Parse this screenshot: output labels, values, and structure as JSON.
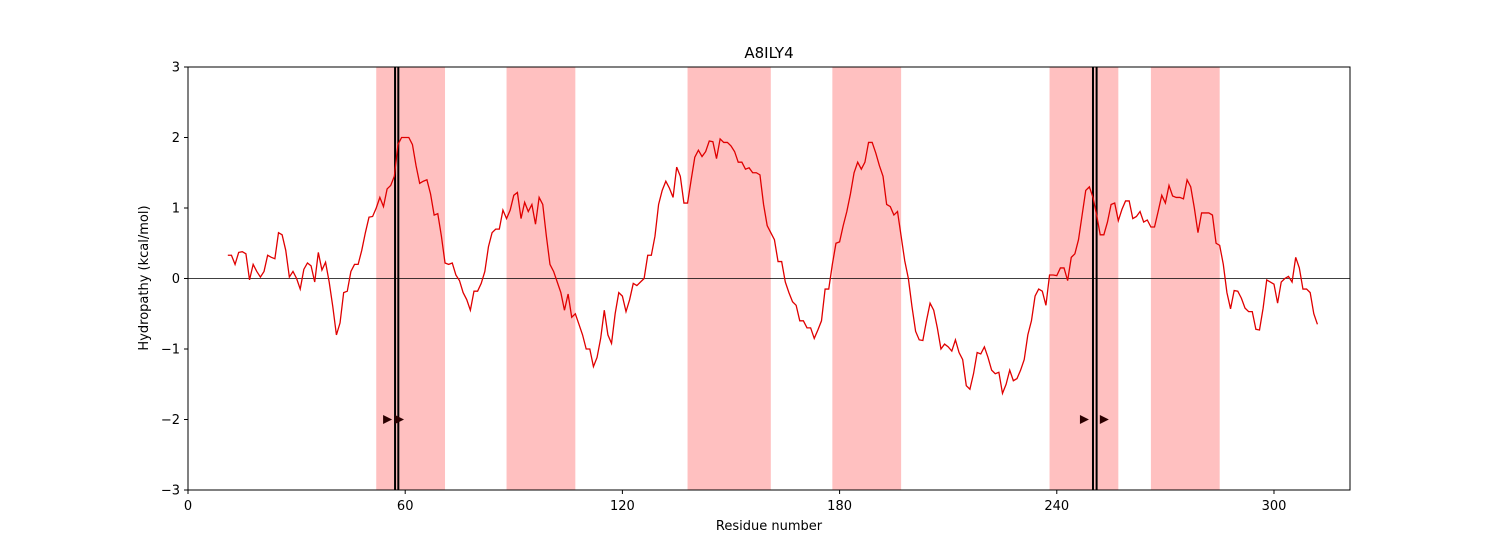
{
  "chart_data": {
    "type": "line",
    "title": "A8ILY4",
    "xlabel": "Residue number",
    "ylabel": "Hydropathy (kcal/mol)",
    "xlim": [
      0,
      321
    ],
    "ylim": [
      -3,
      3
    ],
    "xticks": [
      0,
      60,
      120,
      180,
      240,
      300
    ],
    "yticks": [
      {
        "value": -3,
        "label": "−3"
      },
      {
        "value": -2,
        "label": "−2"
      },
      {
        "value": -1,
        "label": "−1"
      },
      0,
      1,
      2,
      3
    ],
    "color": "#e00000",
    "region_color": "#ffc0c0",
    "marker_color": "#2b0000",
    "regions": [
      [
        52,
        71
      ],
      [
        88,
        107
      ],
      [
        138,
        161
      ],
      [
        178,
        197
      ],
      [
        238,
        257
      ],
      [
        266,
        285
      ]
    ],
    "vlines": [
      57.2,
      58.1,
      250,
      251
    ],
    "triangles": {
      "x": [
        55,
        58.3,
        247.5,
        253
      ],
      "y": -2
    },
    "x": [
      11,
      12,
      13,
      14,
      15,
      16,
      17,
      18,
      19,
      20,
      21,
      22,
      23,
      24,
      25,
      26,
      27,
      28,
      29,
      30,
      31,
      32,
      33,
      34,
      35,
      36,
      37,
      38,
      39,
      40,
      41,
      42,
      43,
      44,
      45,
      46,
      47,
      48,
      49,
      50,
      51,
      52,
      53,
      54,
      55,
      56,
      57,
      58,
      59,
      60,
      61,
      62,
      63,
      64,
      65,
      66,
      67,
      68,
      69,
      70,
      71,
      72,
      73,
      74,
      75,
      76,
      77,
      78,
      79,
      80,
      81,
      82,
      83,
      84,
      85,
      86,
      87,
      88,
      89,
      90,
      91,
      92,
      93,
      94,
      95,
      96,
      97,
      98,
      99,
      100,
      101,
      102,
      103,
      104,
      105,
      106,
      107,
      108,
      109,
      110,
      111,
      112,
      113,
      114,
      115,
      116,
      117,
      118,
      119,
      120,
      121,
      122,
      123,
      124,
      125,
      126,
      127,
      128,
      129,
      130,
      131,
      132,
      133,
      134,
      135,
      136,
      137,
      138,
      139,
      140,
      141,
      142,
      143,
      144,
      145,
      146,
      147,
      148,
      149,
      150,
      151,
      152,
      153,
      154,
      155,
      156,
      157,
      158,
      159,
      160,
      161,
      162,
      163,
      164,
      165,
      166,
      167,
      168,
      169,
      170,
      171,
      172,
      173,
      174,
      175,
      176,
      177,
      178,
      179,
      180,
      181,
      182,
      183,
      184,
      185,
      186,
      187,
      188,
      189,
      190,
      191,
      192,
      193,
      194,
      195,
      196,
      197,
      198,
      199,
      200,
      201,
      202,
      203,
      204,
      205,
      206,
      207,
      208,
      209,
      210,
      211,
      212,
      213,
      214,
      215,
      216,
      217,
      218,
      219,
      220,
      221,
      222,
      223,
      224,
      225,
      226,
      227,
      228,
      229,
      230,
      231,
      232,
      233,
      234,
      235,
      236,
      237,
      238,
      239,
      240,
      241,
      242,
      243,
      244,
      245,
      246,
      247,
      248,
      249,
      250,
      251,
      252,
      253,
      254,
      255,
      256,
      257,
      258,
      259,
      260,
      261,
      262,
      263,
      264,
      265,
      266,
      267,
      268,
      269,
      270,
      271,
      272,
      273,
      274,
      275,
      276,
      277,
      278,
      279,
      280,
      281,
      282,
      283,
      284,
      285,
      286,
      287,
      288,
      289,
      290,
      291,
      292,
      293,
      294,
      295,
      296,
      297,
      298,
      299,
      300,
      301,
      302,
      303,
      304,
      305,
      306,
      307,
      308,
      309,
      310,
      311,
      312
    ],
    "values": [
      0.33,
      0.33,
      0.2,
      0.37,
      0.38,
      0.35,
      -0.02,
      0.2,
      0.1,
      0.02,
      0.1,
      0.33,
      0.3,
      0.28,
      0.65,
      0.62,
      0.4,
      0.02,
      0.1,
      0.0,
      -0.15,
      0.13,
      0.22,
      0.18,
      -0.05,
      0.37,
      0.12,
      0.23,
      -0.05,
      -0.4,
      -0.8,
      -0.63,
      -0.2,
      -0.18,
      0.1,
      0.2,
      0.2,
      0.4,
      0.65,
      0.87,
      0.88,
      1.0,
      1.15,
      1.02,
      1.27,
      1.32,
      1.45,
      1.9,
      2.0,
      2.0,
      2.0,
      1.9,
      1.6,
      1.35,
      1.38,
      1.4,
      1.2,
      0.9,
      0.92,
      0.6,
      0.22,
      0.2,
      0.22,
      0.05,
      -0.03,
      -0.2,
      -0.3,
      -0.45,
      -0.18,
      -0.18,
      -0.07,
      0.1,
      0.45,
      0.65,
      0.7,
      0.7,
      0.97,
      0.85,
      0.97,
      1.18,
      1.22,
      0.85,
      1.08,
      0.95,
      1.05,
      0.77,
      1.15,
      1.05,
      0.6,
      0.2,
      0.1,
      -0.05,
      -0.2,
      -0.45,
      -0.22,
      -0.55,
      -0.5,
      -0.65,
      -0.8,
      -1.0,
      -1.0,
      -1.25,
      -1.12,
      -0.85,
      -0.45,
      -0.8,
      -0.92,
      -0.5,
      -0.2,
      -0.25,
      -0.47,
      -0.3,
      -0.07,
      -0.1,
      -0.05,
      0.0,
      0.33,
      0.33,
      0.6,
      1.05,
      1.25,
      1.38,
      1.28,
      1.15,
      1.58,
      1.45,
      1.07,
      1.07,
      1.4,
      1.72,
      1.82,
      1.73,
      1.8,
      1.95,
      1.94,
      1.7,
      1.98,
      1.93,
      1.93,
      1.88,
      1.8,
      1.65,
      1.65,
      1.55,
      1.57,
      1.5,
      1.5,
      1.47,
      1.05,
      0.75,
      0.65,
      0.55,
      0.24,
      0.24,
      -0.05,
      -0.2,
      -0.33,
      -0.38,
      -0.6,
      -0.6,
      -0.7,
      -0.7,
      -0.85,
      -0.73,
      -0.6,
      -0.15,
      -0.15,
      0.2,
      0.5,
      0.52,
      0.75,
      0.95,
      1.2,
      1.5,
      1.65,
      1.55,
      1.65,
      1.93,
      1.93,
      1.78,
      1.6,
      1.45,
      1.05,
      1.02,
      0.9,
      0.95,
      0.6,
      0.25,
      0.0,
      -0.4,
      -0.75,
      -0.87,
      -0.88,
      -0.6,
      -0.35,
      -0.45,
      -0.7,
      -1.0,
      -0.93,
      -0.97,
      -1.03,
      -0.87,
      -1.05,
      -1.15,
      -1.52,
      -1.57,
      -1.35,
      -1.05,
      -1.07,
      -0.97,
      -1.12,
      -1.3,
      -1.35,
      -1.33,
      -1.63,
      -1.5,
      -1.3,
      -1.45,
      -1.42,
      -1.3,
      -1.15,
      -0.8,
      -0.6,
      -0.25,
      -0.15,
      -0.18,
      -0.38,
      0.05,
      0.05,
      0.04,
      0.15,
      0.15,
      -0.03,
      0.3,
      0.35,
      0.55,
      0.9,
      1.25,
      1.3,
      1.15,
      0.9,
      0.62,
      0.62,
      0.8,
      1.05,
      1.07,
      0.82,
      0.98,
      1.1,
      1.1,
      0.85,
      0.88,
      0.95,
      0.8,
      0.83,
      0.73,
      0.73,
      0.95,
      1.18,
      1.07,
      1.32,
      1.17,
      1.15,
      1.15,
      1.13,
      1.4,
      1.3,
      1.0,
      0.65,
      0.93,
      0.93,
      0.93,
      0.9,
      0.5,
      0.47,
      0.2,
      -0.2,
      -0.43,
      -0.17,
      -0.18,
      -0.28,
      -0.42,
      -0.47,
      -0.47,
      -0.72,
      -0.73,
      -0.42,
      -0.02,
      -0.05,
      -0.08,
      -0.35,
      -0.05,
      0.0,
      0.03,
      -0.05,
      0.3,
      0.15,
      -0.15,
      -0.15,
      -0.2,
      -0.5,
      -0.65
    ]
  }
}
